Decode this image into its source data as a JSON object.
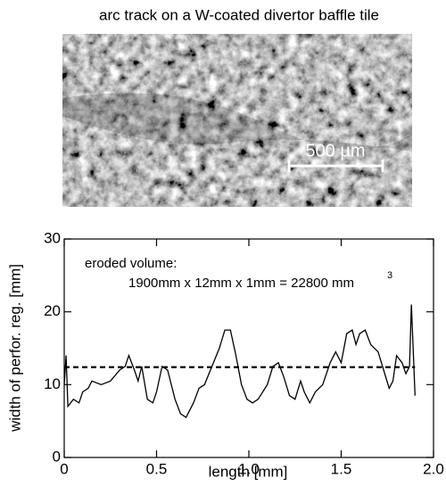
{
  "image": {
    "caption": "arc track on a W-coated divertor baffle tile",
    "scale_bar_label": "500 µm"
  },
  "chart_data": {
    "type": "line",
    "xlabel": "length [mm]",
    "ylabel": "width of perfor. reg. [mm]",
    "annotation": {
      "line1": "eroded volume:",
      "line2": "1900mm x 12mm x 1mm = 22800 mm",
      "superscript": "3"
    },
    "xlim": [
      0,
      2
    ],
    "ylim": [
      0,
      30
    ],
    "xticks": [
      0,
      0.5,
      {
        "value": 1,
        "label": "1.0"
      },
      1.5,
      {
        "value": 2,
        "label": "2.0"
      }
    ],
    "yticks": [
      0,
      10,
      20,
      30
    ],
    "hline": 12.4,
    "series": [
      {
        "color": "#000000",
        "x": [
          0,
          0.01,
          0.02,
          0.05,
          0.08,
          0.1,
          0.13,
          0.15,
          0.2,
          0.25,
          0.3,
          0.33,
          0.35,
          0.38,
          0.4,
          0.42,
          0.45,
          0.48,
          0.5,
          0.53,
          0.56,
          0.6,
          0.63,
          0.66,
          0.7,
          0.73,
          0.76,
          0.8,
          0.84,
          0.87,
          0.9,
          0.93,
          0.96,
          0.99,
          1.02,
          1.05,
          1.1,
          1.13,
          1.16,
          1.19,
          1.22,
          1.25,
          1.28,
          1.3,
          1.33,
          1.36,
          1.4,
          1.44,
          1.47,
          1.5,
          1.53,
          1.56,
          1.58,
          1.6,
          1.63,
          1.66,
          1.7,
          1.73,
          1.76,
          1.78,
          1.8,
          1.83,
          1.85,
          1.87,
          1.88,
          1.9
        ],
        "values": [
          10,
          14,
          7,
          8,
          7.5,
          9,
          9.5,
          10.5,
          10,
          10.5,
          12,
          12.5,
          14,
          12,
          10.5,
          12.5,
          8,
          7.5,
          9,
          12.5,
          12,
          8,
          6,
          5.5,
          7.5,
          9.5,
          10,
          12.5,
          15,
          17.5,
          17.5,
          14,
          10,
          8,
          7.5,
          8,
          10,
          12.5,
          13,
          11,
          8.5,
          8,
          10.5,
          9,
          7.5,
          9,
          10,
          13,
          14.5,
          13,
          17,
          17.5,
          15.5,
          17,
          17.5,
          15.5,
          14.5,
          12,
          9.5,
          10.5,
          14,
          13,
          11.5,
          12.5,
          21,
          8.5
        ]
      }
    ]
  }
}
